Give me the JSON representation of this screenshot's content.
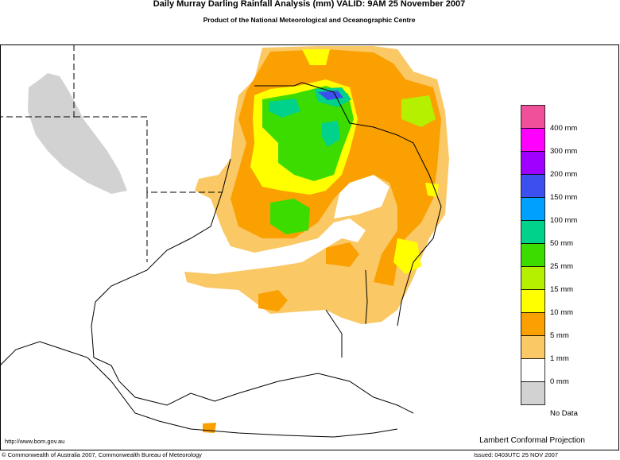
{
  "header": {
    "title": "Daily Murray Darling Rainfall Analysis (mm)  VALID: 9AM 25 November 2007",
    "subtitle": "Product of the National Meteorological and Oceanographic Centre"
  },
  "legend": {
    "swatches": [
      "#f0509a",
      "#ff00ff",
      "#a000ff",
      "#3c50f0",
      "#00a0ff",
      "#00d28c",
      "#3cdc00",
      "#b4f000",
      "#ffff00",
      "#faa000",
      "#fac864",
      "#ffffff",
      "#d2d2d2"
    ],
    "labels": [
      "400 mm",
      "300 mm",
      "200 mm",
      "150 mm",
      "100 mm",
      "50 mm",
      "25 mm",
      "15 mm",
      "10 mm",
      "5 mm",
      "1 mm",
      "0 mm",
      "No Data"
    ]
  },
  "footer": {
    "url": "http://www.bom.gov.au",
    "projection": "Lambert Conformal Projection",
    "copyright": "© Commonwealth of Australia 2007, Commonwealth Bureau of Meteorology",
    "issued": "Issued: 0403UTC 25 NOV 2007"
  }
}
